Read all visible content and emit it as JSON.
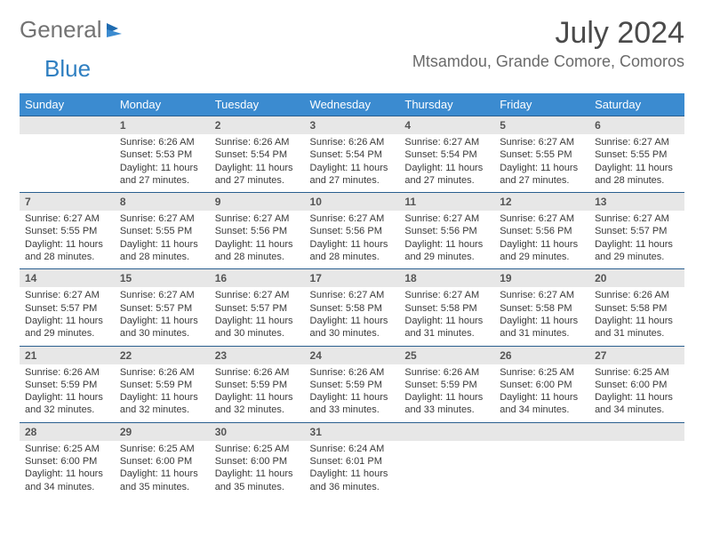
{
  "logo": {
    "general": "General",
    "blue": "Blue"
  },
  "title": "July 2024",
  "location": "Mtsamdou, Grande Comore, Comoros",
  "colors": {
    "header_bg": "#3b8bd0",
    "header_text": "#ffffff",
    "daynum_bg": "#e7e7e7",
    "border": "#2a5f8f"
  },
  "day_headers": [
    "Sunday",
    "Monday",
    "Tuesday",
    "Wednesday",
    "Thursday",
    "Friday",
    "Saturday"
  ],
  "weeks": [
    [
      {
        "n": "",
        "sr": "",
        "ss": "",
        "dl": ""
      },
      {
        "n": "1",
        "sr": "Sunrise: 6:26 AM",
        "ss": "Sunset: 5:53 PM",
        "dl": "Daylight: 11 hours and 27 minutes."
      },
      {
        "n": "2",
        "sr": "Sunrise: 6:26 AM",
        "ss": "Sunset: 5:54 PM",
        "dl": "Daylight: 11 hours and 27 minutes."
      },
      {
        "n": "3",
        "sr": "Sunrise: 6:26 AM",
        "ss": "Sunset: 5:54 PM",
        "dl": "Daylight: 11 hours and 27 minutes."
      },
      {
        "n": "4",
        "sr": "Sunrise: 6:27 AM",
        "ss": "Sunset: 5:54 PM",
        "dl": "Daylight: 11 hours and 27 minutes."
      },
      {
        "n": "5",
        "sr": "Sunrise: 6:27 AM",
        "ss": "Sunset: 5:55 PM",
        "dl": "Daylight: 11 hours and 27 minutes."
      },
      {
        "n": "6",
        "sr": "Sunrise: 6:27 AM",
        "ss": "Sunset: 5:55 PM",
        "dl": "Daylight: 11 hours and 28 minutes."
      }
    ],
    [
      {
        "n": "7",
        "sr": "Sunrise: 6:27 AM",
        "ss": "Sunset: 5:55 PM",
        "dl": "Daylight: 11 hours and 28 minutes."
      },
      {
        "n": "8",
        "sr": "Sunrise: 6:27 AM",
        "ss": "Sunset: 5:55 PM",
        "dl": "Daylight: 11 hours and 28 minutes."
      },
      {
        "n": "9",
        "sr": "Sunrise: 6:27 AM",
        "ss": "Sunset: 5:56 PM",
        "dl": "Daylight: 11 hours and 28 minutes."
      },
      {
        "n": "10",
        "sr": "Sunrise: 6:27 AM",
        "ss": "Sunset: 5:56 PM",
        "dl": "Daylight: 11 hours and 28 minutes."
      },
      {
        "n": "11",
        "sr": "Sunrise: 6:27 AM",
        "ss": "Sunset: 5:56 PM",
        "dl": "Daylight: 11 hours and 29 minutes."
      },
      {
        "n": "12",
        "sr": "Sunrise: 6:27 AM",
        "ss": "Sunset: 5:56 PM",
        "dl": "Daylight: 11 hours and 29 minutes."
      },
      {
        "n": "13",
        "sr": "Sunrise: 6:27 AM",
        "ss": "Sunset: 5:57 PM",
        "dl": "Daylight: 11 hours and 29 minutes."
      }
    ],
    [
      {
        "n": "14",
        "sr": "Sunrise: 6:27 AM",
        "ss": "Sunset: 5:57 PM",
        "dl": "Daylight: 11 hours and 29 minutes."
      },
      {
        "n": "15",
        "sr": "Sunrise: 6:27 AM",
        "ss": "Sunset: 5:57 PM",
        "dl": "Daylight: 11 hours and 30 minutes."
      },
      {
        "n": "16",
        "sr": "Sunrise: 6:27 AM",
        "ss": "Sunset: 5:57 PM",
        "dl": "Daylight: 11 hours and 30 minutes."
      },
      {
        "n": "17",
        "sr": "Sunrise: 6:27 AM",
        "ss": "Sunset: 5:58 PM",
        "dl": "Daylight: 11 hours and 30 minutes."
      },
      {
        "n": "18",
        "sr": "Sunrise: 6:27 AM",
        "ss": "Sunset: 5:58 PM",
        "dl": "Daylight: 11 hours and 31 minutes."
      },
      {
        "n": "19",
        "sr": "Sunrise: 6:27 AM",
        "ss": "Sunset: 5:58 PM",
        "dl": "Daylight: 11 hours and 31 minutes."
      },
      {
        "n": "20",
        "sr": "Sunrise: 6:26 AM",
        "ss": "Sunset: 5:58 PM",
        "dl": "Daylight: 11 hours and 31 minutes."
      }
    ],
    [
      {
        "n": "21",
        "sr": "Sunrise: 6:26 AM",
        "ss": "Sunset: 5:59 PM",
        "dl": "Daylight: 11 hours and 32 minutes."
      },
      {
        "n": "22",
        "sr": "Sunrise: 6:26 AM",
        "ss": "Sunset: 5:59 PM",
        "dl": "Daylight: 11 hours and 32 minutes."
      },
      {
        "n": "23",
        "sr": "Sunrise: 6:26 AM",
        "ss": "Sunset: 5:59 PM",
        "dl": "Daylight: 11 hours and 32 minutes."
      },
      {
        "n": "24",
        "sr": "Sunrise: 6:26 AM",
        "ss": "Sunset: 5:59 PM",
        "dl": "Daylight: 11 hours and 33 minutes."
      },
      {
        "n": "25",
        "sr": "Sunrise: 6:26 AM",
        "ss": "Sunset: 5:59 PM",
        "dl": "Daylight: 11 hours and 33 minutes."
      },
      {
        "n": "26",
        "sr": "Sunrise: 6:25 AM",
        "ss": "Sunset: 6:00 PM",
        "dl": "Daylight: 11 hours and 34 minutes."
      },
      {
        "n": "27",
        "sr": "Sunrise: 6:25 AM",
        "ss": "Sunset: 6:00 PM",
        "dl": "Daylight: 11 hours and 34 minutes."
      }
    ],
    [
      {
        "n": "28",
        "sr": "Sunrise: 6:25 AM",
        "ss": "Sunset: 6:00 PM",
        "dl": "Daylight: 11 hours and 34 minutes."
      },
      {
        "n": "29",
        "sr": "Sunrise: 6:25 AM",
        "ss": "Sunset: 6:00 PM",
        "dl": "Daylight: 11 hours and 35 minutes."
      },
      {
        "n": "30",
        "sr": "Sunrise: 6:25 AM",
        "ss": "Sunset: 6:00 PM",
        "dl": "Daylight: 11 hours and 35 minutes."
      },
      {
        "n": "31",
        "sr": "Sunrise: 6:24 AM",
        "ss": "Sunset: 6:01 PM",
        "dl": "Daylight: 11 hours and 36 minutes."
      },
      {
        "n": "",
        "sr": "",
        "ss": "",
        "dl": ""
      },
      {
        "n": "",
        "sr": "",
        "ss": "",
        "dl": ""
      },
      {
        "n": "",
        "sr": "",
        "ss": "",
        "dl": ""
      }
    ]
  ]
}
